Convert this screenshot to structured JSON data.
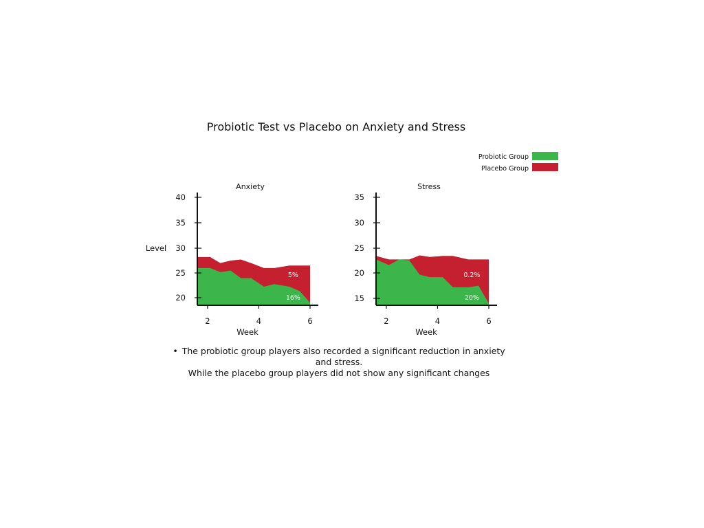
{
  "title": "Probiotic Test vs Placebo on Anxiety and Stress",
  "note_lines": [
    "The probiotic group players also recorded a significant reduction in anxiety and stress.",
    "While the placebo group players did not show any significant changes"
  ],
  "colors": {
    "probiotic": "#3cb54a",
    "placebo": "#c4202f",
    "axis": "#111111"
  },
  "legend": [
    {
      "label": "Probiotic Group",
      "color": "#3cb54a"
    },
    {
      "label": "Placebo Group",
      "color": "#c4202f"
    }
  ],
  "chart_data": [
    {
      "type": "area",
      "title": "Anxiety",
      "xlabel": "Week",
      "ylabel": "Level",
      "xlim": [
        1.6,
        6
      ],
      "ylim": [
        19,
        41
      ],
      "xticks": [
        2,
        4,
        6
      ],
      "yticks": [
        20,
        25,
        30,
        35,
        40
      ],
      "series": [
        {
          "name": "Probiotic Group",
          "x": [
            1.6,
            2.1,
            2.5,
            2.9,
            3.3,
            3.7,
            4.2,
            4.6,
            5.2,
            5.6,
            6.0
          ],
          "values": [
            25.9,
            25.9,
            25.1,
            25.4,
            23.9,
            23.9,
            22.2,
            22.7,
            22.2,
            21.3,
            19
          ]
        },
        {
          "name": "Placebo Group",
          "x": [
            1.6,
            2.1,
            2.5,
            2.9,
            3.3,
            3.7,
            4.2,
            4.6,
            5.2,
            5.6,
            6.0
          ],
          "values": [
            28.1,
            28.1,
            26.9,
            27.4,
            27.6,
            26.9,
            25.9,
            25.9,
            26.4,
            26.4,
            26.4
          ]
        }
      ],
      "annotations": [
        "5%",
        "16%"
      ]
    },
    {
      "type": "area",
      "title": "Stress",
      "xlabel": "Week",
      "ylabel": "",
      "xlim": [
        1.6,
        6
      ],
      "ylim": [
        14,
        36
      ],
      "xticks": [
        2,
        4,
        6
      ],
      "yticks": [
        15,
        20,
        25,
        30,
        35
      ],
      "series": [
        {
          "name": "Probiotic Group",
          "x": [
            1.6,
            2.1,
            2.5,
            2.9,
            3.3,
            3.7,
            4.2,
            4.6,
            5.2,
            5.6,
            6.0
          ],
          "values": [
            22.7,
            21.6,
            22.7,
            22.5,
            19.7,
            19.2,
            19.2,
            17.2,
            17.2,
            17.5,
            14
          ]
        },
        {
          "name": "Placebo Group",
          "x": [
            1.6,
            2.1,
            2.5,
            2.9,
            3.3,
            3.7,
            4.2,
            4.6,
            5.2,
            5.6,
            6.0
          ],
          "values": [
            23.4,
            22.7,
            22.7,
            22.7,
            23.5,
            23.2,
            23.4,
            23.4,
            22.7,
            22.7,
            22.7
          ]
        }
      ],
      "annotations": [
        "0.2%",
        "20%"
      ]
    }
  ]
}
